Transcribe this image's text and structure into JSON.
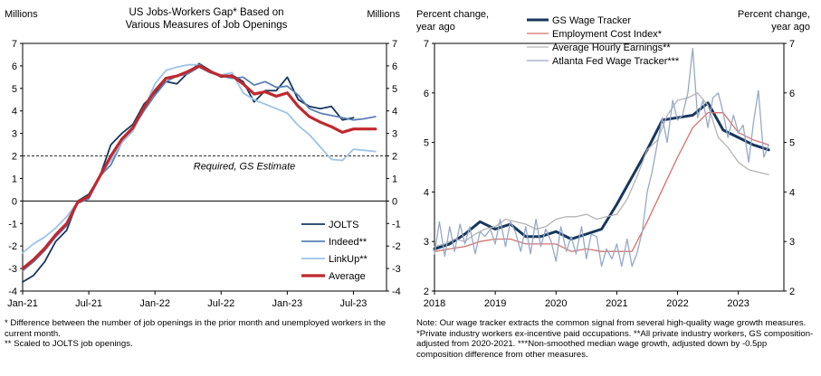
{
  "left_units_left": "Millions",
  "left_units_right": "Millions",
  "right_units_left": [
    "Percent change,",
    "year ago"
  ],
  "right_units_right": [
    "Percent change,",
    "year ago"
  ],
  "left_footnote": "* Difference between the number of job openings in the prior month and unemployed workers in the current month.\n** Scaled to JOLTS job openings.",
  "right_footnote": "Note: Our wage tracker extracts the common signal from several high-quality wage growth measures. *Private industry workers ex-incentive paid occupations. **All private industry workers, GS composition-adjusted from 2020-2021. ***Non-smoothed median wage growth, adjusted down by -0.5pp composition difference from other measures.",
  "colors": {
    "navy": "#17375e",
    "blue": "#5b80b4",
    "light": "#9dc3e6",
    "red": "#c0282d",
    "pink": "#d9706b",
    "gray": "#b3b3b3",
    "steel": "#95a9c7",
    "dash": "#303030"
  },
  "chart_data": [
    {
      "type": "line",
      "title": [
        "US Jobs-Workers Gap* Based on",
        "Various Measures of Job Openings"
      ],
      "ylabel": "Millions",
      "ylim": [
        -4,
        7
      ],
      "yticks": [
        -4,
        -3,
        -2,
        -1,
        0,
        1,
        2,
        3,
        4,
        5,
        6,
        7
      ],
      "xlim": [
        0,
        33
      ],
      "xticks": [
        {
          "pos": 0,
          "label": "Jan-21"
        },
        {
          "pos": 6,
          "label": "Jul-21"
        },
        {
          "pos": 12,
          "label": "Jan-22"
        },
        {
          "pos": 18,
          "label": "Jul-22"
        },
        {
          "pos": 24,
          "label": "Jan-23"
        },
        {
          "pos": 30,
          "label": "Jul-23"
        }
      ],
      "hline": {
        "value": 2,
        "label": "Required, GS Estimate"
      },
      "legend": "bottom-right",
      "series": [
        {
          "name": "JOLTS",
          "color": "navy",
          "width": 1.8,
          "x": [
            0,
            1,
            2,
            3,
            4,
            5,
            6,
            7,
            8,
            9,
            10,
            11,
            12,
            13,
            14,
            15,
            16,
            17,
            18,
            19,
            20,
            21,
            22,
            23,
            24,
            25,
            26,
            27,
            28,
            29,
            30
          ],
          "y": [
            -3.6,
            -3.3,
            -2.7,
            -1.8,
            -1.3,
            0,
            0.3,
            1.1,
            2.5,
            3.0,
            3.4,
            4.3,
            4.8,
            5.3,
            5.2,
            5.7,
            6.1,
            5.8,
            5.5,
            5.6,
            5.3,
            4.4,
            4.9,
            4.9,
            5.5,
            4.5,
            4.2,
            4.1,
            4.2,
            3.6,
            3.7
          ]
        },
        {
          "name": "Indeed**",
          "color": "blue",
          "width": 1.8,
          "x": [
            0,
            1,
            2,
            3,
            4,
            5,
            6,
            7,
            8,
            9,
            10,
            11,
            12,
            13,
            14,
            15,
            16,
            17,
            18,
            19,
            20,
            21,
            22,
            23,
            24,
            25,
            26,
            27,
            28,
            29,
            30,
            31,
            32
          ],
          "y": [
            -3.1,
            -2.7,
            -2.2,
            -1.6,
            -1.1,
            -0.1,
            0.1,
            1.1,
            1.6,
            2.6,
            3.2,
            4.0,
            4.7,
            5.3,
            5.55,
            5.65,
            5.95,
            5.7,
            5.55,
            5.45,
            5.5,
            5.15,
            5.3,
            5.05,
            5.1,
            4.7,
            4.1,
            3.9,
            3.8,
            3.7,
            3.6,
            3.65,
            3.75
          ]
        },
        {
          "name": "LinkUp**",
          "color": "light",
          "width": 1.8,
          "x": [
            0,
            1,
            2,
            3,
            4,
            5,
            6,
            7,
            8,
            9,
            10,
            11,
            12,
            13,
            14,
            15,
            16,
            17,
            18,
            19,
            20,
            21,
            22,
            23,
            24,
            25,
            26,
            27,
            28,
            29,
            30,
            31,
            32
          ],
          "y": [
            -2.3,
            -1.9,
            -1.6,
            -1.2,
            -0.7,
            -0.05,
            0.2,
            1.1,
            1.8,
            2.6,
            3.1,
            4.1,
            5.2,
            5.8,
            5.95,
            6.05,
            6.05,
            5.75,
            5.6,
            5.7,
            4.8,
            4.5,
            4.3,
            4.1,
            3.9,
            3.35,
            2.95,
            2.4,
            1.85,
            1.8,
            2.3,
            2.25,
            2.2
          ]
        },
        {
          "name": "Average",
          "color": "red",
          "width": 3.2,
          "x": [
            0,
            1,
            2,
            3,
            4,
            5,
            6,
            7,
            8,
            9,
            10,
            11,
            12,
            13,
            14,
            15,
            16,
            17,
            18,
            19,
            20,
            21,
            22,
            23,
            24,
            25,
            26,
            27,
            28,
            29,
            30,
            31,
            32
          ],
          "y": [
            -3.0,
            -2.6,
            -2.1,
            -1.5,
            -1.0,
            -0.05,
            0.2,
            1.1,
            2.0,
            2.75,
            3.25,
            4.15,
            4.9,
            5.45,
            5.55,
            5.75,
            6.0,
            5.75,
            5.55,
            5.55,
            5.2,
            4.75,
            4.85,
            4.65,
            4.8,
            4.2,
            3.75,
            3.5,
            3.3,
            3.05,
            3.2,
            3.2,
            3.2
          ]
        }
      ]
    },
    {
      "type": "line",
      "title": "",
      "ylabel": "Percent change, year ago",
      "ylim": [
        2,
        7
      ],
      "yticks": [
        2,
        3,
        4,
        5,
        6,
        7
      ],
      "xlim": [
        2018,
        2023.75
      ],
      "xticks": [
        {
          "pos": 2018,
          "label": "2018"
        },
        {
          "pos": 2019,
          "label": "2019"
        },
        {
          "pos": 2020,
          "label": "2020"
        },
        {
          "pos": 2021,
          "label": "2021"
        },
        {
          "pos": 2022,
          "label": "2022"
        },
        {
          "pos": 2023,
          "label": "2023"
        }
      ],
      "legend": "top-left",
      "series": [
        {
          "name": "GS Wage Tracker",
          "color": "navy",
          "width": 3.0,
          "x": [
            2018,
            2018.25,
            2018.5,
            2018.75,
            2019,
            2019.25,
            2019.5,
            2019.75,
            2020,
            2020.25,
            2020.5,
            2020.75,
            2021,
            2021.25,
            2021.5,
            2021.75,
            2022,
            2022.25,
            2022.5,
            2022.75,
            2023,
            2023.25,
            2023.5
          ],
          "y": [
            2.85,
            2.95,
            3.15,
            3.4,
            3.25,
            3.35,
            3.1,
            3.1,
            3.2,
            3.05,
            3.15,
            3.25,
            3.75,
            4.3,
            4.85,
            5.45,
            5.5,
            5.55,
            5.8,
            5.25,
            5.1,
            4.95,
            4.85
          ]
        },
        {
          "name": "Employment Cost Index*",
          "color": "pink",
          "width": 1.3,
          "x": [
            2018,
            2018.25,
            2018.5,
            2018.75,
            2019,
            2019.25,
            2019.5,
            2019.75,
            2020,
            2020.25,
            2020.5,
            2020.75,
            2021,
            2021.25,
            2021.5,
            2021.75,
            2022,
            2022.25,
            2022.5,
            2022.75,
            2023,
            2023.25,
            2023.5
          ],
          "y": [
            2.8,
            2.85,
            2.9,
            3.0,
            3.05,
            3.05,
            2.95,
            2.95,
            2.95,
            2.8,
            2.85,
            2.8,
            2.8,
            2.8,
            3.4,
            4.05,
            4.7,
            5.3,
            5.6,
            5.6,
            5.2,
            5.05,
            4.95
          ]
        },
        {
          "name": "Average Hourly Earnings**",
          "color": "gray",
          "width": 1.3,
          "x": [
            2018,
            2018.17,
            2018.33,
            2018.5,
            2018.67,
            2018.83,
            2019,
            2019.17,
            2019.33,
            2019.5,
            2019.67,
            2019.83,
            2020,
            2020.17,
            2020.33,
            2020.5,
            2020.67,
            2020.83,
            2021,
            2021.17,
            2021.33,
            2021.5,
            2021.67,
            2021.83,
            2022,
            2022.17,
            2022.33,
            2022.5,
            2022.67,
            2022.83,
            2023,
            2023.17,
            2023.33,
            2023.5
          ],
          "y": [
            2.9,
            2.95,
            3.05,
            3.0,
            3.15,
            3.25,
            3.3,
            3.45,
            3.4,
            3.35,
            3.25,
            3.3,
            3.45,
            3.5,
            3.5,
            3.55,
            3.45,
            3.5,
            3.55,
            3.85,
            4.3,
            4.85,
            5.05,
            5.55,
            5.85,
            5.9,
            6.0,
            5.75,
            5.1,
            4.9,
            4.6,
            4.45,
            4.4,
            4.35
          ]
        },
        {
          "name": "Atlanta Fed Wage Tracker***",
          "color": "steel",
          "width": 1.3,
          "x": [
            2018,
            2018.08,
            2018.17,
            2018.25,
            2018.33,
            2018.42,
            2018.5,
            2018.58,
            2018.67,
            2018.75,
            2018.83,
            2018.92,
            2019,
            2019.08,
            2019.17,
            2019.25,
            2019.33,
            2019.42,
            2019.5,
            2019.58,
            2019.67,
            2019.75,
            2019.83,
            2019.92,
            2020,
            2020.08,
            2020.17,
            2020.25,
            2020.33,
            2020.42,
            2020.5,
            2020.58,
            2020.67,
            2020.75,
            2020.83,
            2020.92,
            2021,
            2021.08,
            2021.17,
            2021.25,
            2021.33,
            2021.42,
            2021.5,
            2021.58,
            2021.67,
            2021.75,
            2021.83,
            2021.92,
            2022,
            2022.08,
            2022.17,
            2022.25,
            2022.33,
            2022.42,
            2022.5,
            2022.58,
            2022.67,
            2022.75,
            2022.83,
            2022.92,
            2023,
            2023.08,
            2023.17,
            2023.25,
            2023.33,
            2023.42,
            2023.5
          ],
          "y": [
            2.75,
            3.4,
            2.7,
            3.3,
            2.8,
            3.35,
            2.95,
            3.3,
            2.75,
            3.2,
            3.1,
            3.25,
            2.95,
            3.45,
            2.9,
            3.4,
            3.2,
            2.8,
            3.3,
            2.75,
            3.45,
            2.9,
            3.25,
            3.0,
            2.6,
            3.3,
            2.8,
            3.1,
            2.75,
            3.3,
            2.65,
            3.15,
            3.1,
            2.5,
            2.85,
            2.65,
            2.95,
            2.5,
            3.05,
            2.5,
            2.75,
            3.2,
            4.0,
            4.4,
            5.0,
            5.5,
            5.0,
            5.85,
            5.45,
            5.55,
            6.0,
            6.9,
            5.5,
            5.85,
            5.3,
            5.9,
            6.0,
            5.6,
            5.1,
            5.55,
            5.2,
            5.35,
            4.6,
            5.4,
            6.05,
            4.7,
            4.95
          ]
        }
      ]
    }
  ]
}
